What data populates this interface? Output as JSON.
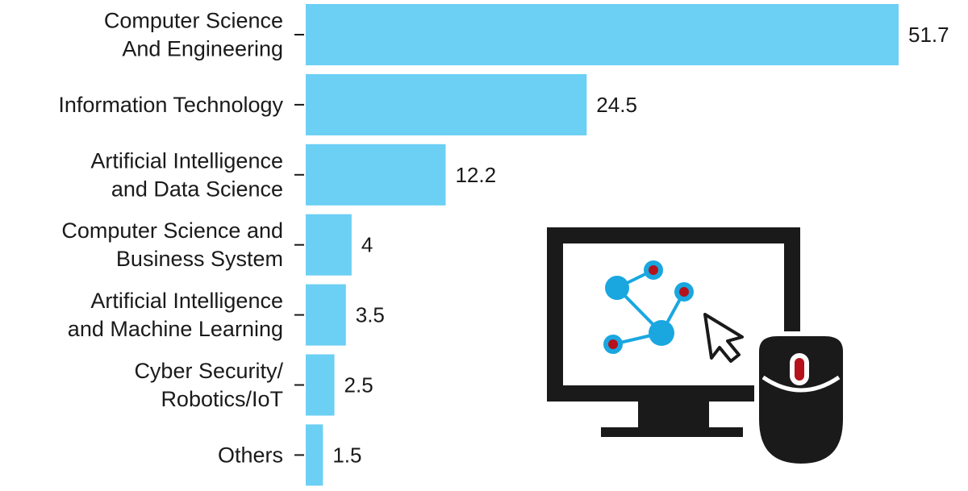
{
  "chart_data": {
    "type": "bar",
    "orientation": "horizontal",
    "categories": [
      [
        "Computer Science",
        "And Engineering"
      ],
      [
        "Information Technology"
      ],
      [
        "Artificial Intelligence",
        "and Data Science"
      ],
      [
        "Computer Science and",
        "Business System"
      ],
      [
        "Artificial Intelligence",
        "and Machine Learning"
      ],
      [
        "Cyber Security/",
        "Robotics/IoT"
      ],
      [
        "Others"
      ]
    ],
    "values": [
      51.7,
      24.5,
      12.2,
      4,
      3.5,
      2.5,
      1.5
    ],
    "value_labels": [
      "51.7",
      "24.5",
      "12.2",
      "4",
      "3.5",
      "2.5",
      "1.5"
    ],
    "xlim": [
      0,
      51.7
    ],
    "grid": false,
    "bar_color": "#6ccff4"
  },
  "illustration": {
    "icon": "computer-monitor-mouse-icon",
    "colors": {
      "frame": "#1a1a1a",
      "node": "#1aa7e0",
      "node_center": "#b5121b",
      "mouse_button": "#b5121b"
    }
  }
}
